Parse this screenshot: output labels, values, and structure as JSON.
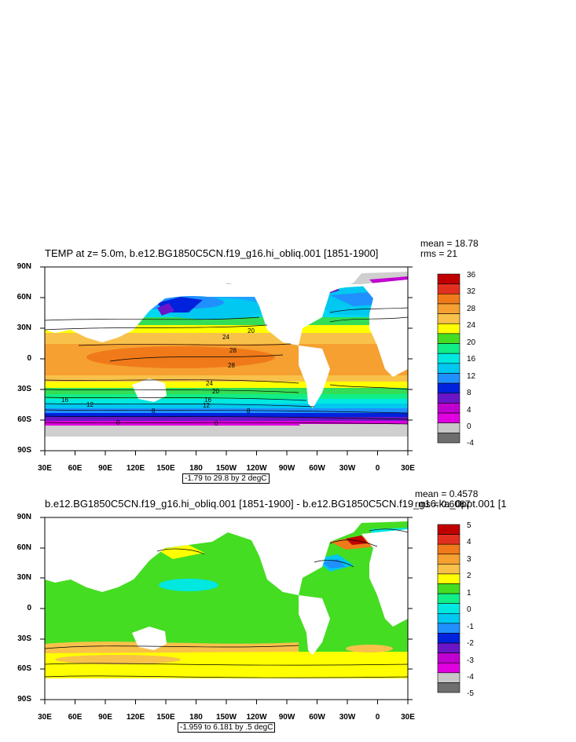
{
  "panels": [
    {
      "title": "TEMP at z=   5.0m, b.e12.BG1850C5CN.f19_g16.hi_obliq.001 [1851-1900]",
      "mean": "mean = 18.78",
      "rms": "rms = 21",
      "range_label": "-1.79 to 29.8 by 2 degC",
      "lat_labels": [
        "90N",
        "60N",
        "30N",
        "0",
        "30S",
        "60S",
        "90S"
      ],
      "lon_labels": [
        "30E",
        "60E",
        "90E",
        "120E",
        "150E",
        "180",
        "150W",
        "120W",
        "90W",
        "60W",
        "30W",
        "0",
        "30E"
      ],
      "colorbar": {
        "labels": [
          "36",
          "32",
          "28",
          "24",
          "20",
          "16",
          "12",
          "8",
          "4",
          "0",
          "-4"
        ],
        "colors": [
          "#c00000",
          "#e23020",
          "#f07a1a",
          "#f5a030",
          "#f8c14a",
          "#ffff00",
          "#44dd22",
          "#11ee88",
          "#00e8e0",
          "#00c8f0",
          "#2090ff",
          "#0022dd",
          "#6a16c8",
          "#c000d0",
          "#e000e0",
          "#c8c8c8",
          "#6e6e6e"
        ]
      },
      "contour_labels": [
        "20",
        "24",
        "28",
        "28",
        "24",
        "20",
        "16",
        "12",
        "8",
        "8",
        "0",
        "0",
        "16",
        "12"
      ]
    },
    {
      "title": "b.e12.BG1850C5CN.f19_g16.hi_obliq.001 [1851-1900] - b.e12.BG1850C5CN.f19_g16.ka_0ppt.001 [1",
      "mean": "mean = 0.4578",
      "rms": "rms = 0.6087",
      "range_label": "-1.959 to 6.181 by .5 degC",
      "lat_labels": [
        "90N",
        "60N",
        "30N",
        "0",
        "30S",
        "60S",
        "90S"
      ],
      "lon_labels": [
        "30E",
        "60E",
        "90E",
        "120E",
        "150E",
        "180",
        "150W",
        "120W",
        "90W",
        "60W",
        "30W",
        "0",
        "30E"
      ],
      "colorbar": {
        "labels": [
          "5",
          "4",
          "3",
          "2",
          "1",
          "0",
          "-1",
          "-2",
          "-3",
          "-4",
          "-5"
        ],
        "colors": [
          "#c00000",
          "#e23020",
          "#f07a1a",
          "#f5a030",
          "#f8c14a",
          "#ffff00",
          "#44dd22",
          "#11ee88",
          "#00e8e0",
          "#00c8f0",
          "#2090ff",
          "#0022dd",
          "#6a16c8",
          "#c000d0",
          "#e000e0",
          "#c8c8c8",
          "#6e6e6e"
        ]
      }
    }
  ]
}
